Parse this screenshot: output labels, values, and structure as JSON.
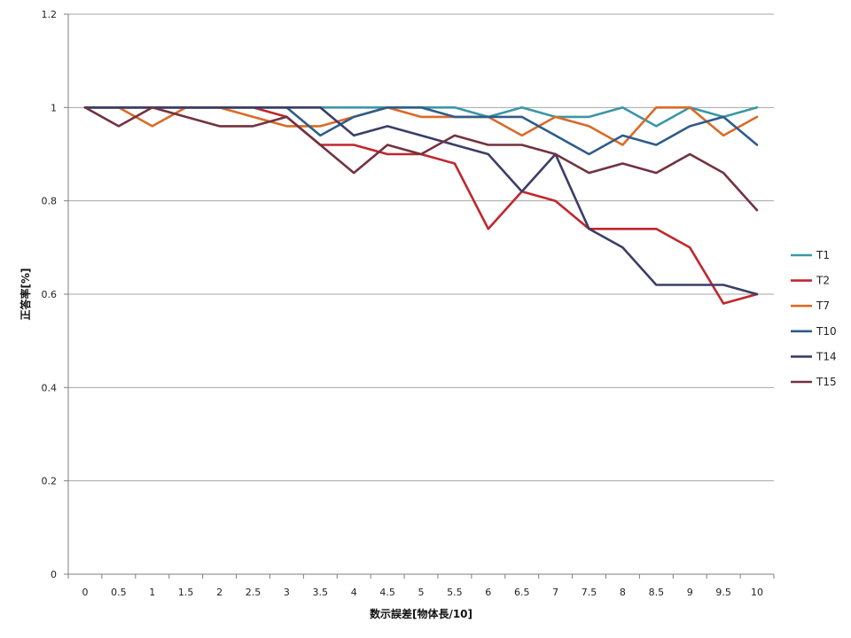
{
  "chart_data": {
    "type": "line",
    "title": "",
    "xlabel": "数示誤差[物体長/10]",
    "ylabel": "正答率[%]",
    "categories": [
      "0",
      "0.5",
      "1",
      "1.5",
      "2",
      "2.5",
      "3",
      "3.5",
      "4",
      "4.5",
      "5",
      "5.5",
      "6",
      "6.5",
      "7",
      "7.5",
      "8",
      "8.5",
      "9",
      "9.5",
      "10"
    ],
    "y_ticks": [
      "0",
      "0.2",
      "0.4",
      "0.6",
      "0.8",
      "1",
      "1.2"
    ],
    "ylim": [
      0,
      1.2
    ],
    "grid": "horizontal",
    "legend_position": "right",
    "series": [
      {
        "name": "T1",
        "color": "#3a97a8",
        "values": [
          1,
          1,
          1,
          1,
          1,
          1,
          1,
          1,
          1,
          1,
          1,
          1,
          0.98,
          1,
          0.98,
          0.98,
          1,
          0.96,
          1,
          0.98,
          1
        ]
      },
      {
        "name": "T2",
        "color": "#c0272d",
        "values": [
          1,
          1,
          1,
          1,
          1,
          1,
          0.98,
          0.92,
          0.92,
          0.9,
          0.9,
          0.88,
          0.74,
          0.82,
          0.8,
          0.74,
          0.74,
          0.74,
          0.7,
          0.58,
          0.6
        ]
      },
      {
        "name": "T7",
        "color": "#d96b27",
        "values": [
          1,
          1,
          0.96,
          1,
          1,
          0.98,
          0.96,
          0.96,
          0.98,
          1,
          0.98,
          0.98,
          0.98,
          0.94,
          0.98,
          0.96,
          0.92,
          1,
          1,
          0.94,
          0.98
        ]
      },
      {
        "name": "T10",
        "color": "#2f5c8a",
        "values": [
          1,
          1,
          1,
          1,
          1,
          1,
          1,
          0.94,
          0.98,
          1,
          1,
          0.98,
          0.98,
          0.98,
          0.94,
          0.9,
          0.94,
          0.92,
          0.96,
          0.98,
          0.92
        ]
      },
      {
        "name": "T14",
        "color": "#3b3f66",
        "values": [
          1,
          1,
          1,
          1,
          1,
          1,
          1,
          1,
          0.94,
          0.96,
          0.94,
          0.92,
          0.9,
          0.82,
          0.9,
          0.74,
          0.7,
          0.62,
          0.62,
          0.62,
          0.6
        ]
      },
      {
        "name": "T15",
        "color": "#73323f",
        "values": [
          1,
          0.96,
          1,
          0.98,
          0.96,
          0.96,
          0.98,
          0.92,
          0.86,
          0.92,
          0.9,
          0.94,
          0.92,
          0.92,
          0.9,
          0.86,
          0.88,
          0.86,
          0.9,
          0.86,
          0.78
        ]
      }
    ]
  }
}
